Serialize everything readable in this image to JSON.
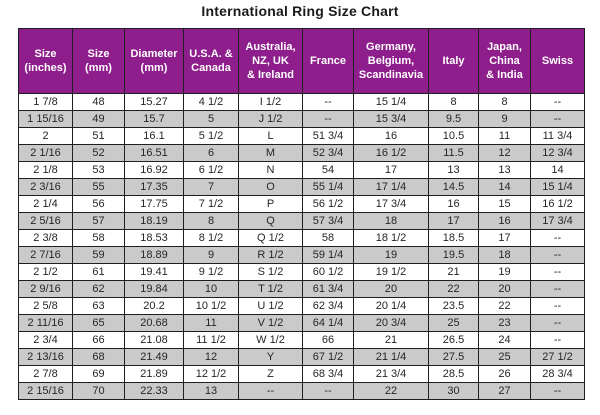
{
  "page": {
    "title": "International Ring Size Chart"
  },
  "colors": {
    "header_bg": "#8e1e8c",
    "row_bg": "#ffffff",
    "row_alt_bg": "#cacaca",
    "border": "#1f1f1f",
    "header_text": "#ffffff",
    "cell_text": "#262626",
    "title_text": "#1a1a1a"
  },
  "chart_data": {
    "type": "table",
    "title": "International Ring Size Chart",
    "columns": [
      "Size\n(inches)",
      "Size\n(mm)",
      "Diameter\n(mm)",
      "U.S.A. &\nCanada",
      "Australia,\nNZ, UK\n& Ireland",
      "France",
      "Germany,\nBelgium,\nScandinavia",
      "Italy",
      "Japan,\nChina\n& India",
      "Swiss"
    ],
    "rows": [
      [
        "1 7/8",
        "48",
        "15.27",
        "4 1/2",
        "I 1/2",
        "--",
        "15 1/4",
        "8",
        "8",
        "--"
      ],
      [
        "1 15/16",
        "49",
        "15.7",
        "5",
        "J 1/2",
        "--",
        "15 3/4",
        "9.5",
        "9",
        "--"
      ],
      [
        "2",
        "51",
        "16.1",
        "5 1/2",
        "L",
        "51 3/4",
        "16",
        "10.5",
        "11",
        "11 3/4"
      ],
      [
        "2 1/16",
        "52",
        "16.51",
        "6",
        "M",
        "52 3/4",
        "16 1/2",
        "11.5",
        "12",
        "12 3/4"
      ],
      [
        "2 1/8",
        "53",
        "16.92",
        "6 1/2",
        "N",
        "54",
        "17",
        "13",
        "13",
        "14"
      ],
      [
        "2 3/16",
        "55",
        "17.35",
        "7",
        "O",
        "55 1/4",
        "17 1/4",
        "14.5",
        "14",
        "15 1/4"
      ],
      [
        "2 1/4",
        "56",
        "17.75",
        "7 1/2",
        "P",
        "56 1/2",
        "17 3/4",
        "16",
        "15",
        "16 1/2"
      ],
      [
        "2 5/16",
        "57",
        "18.19",
        "8",
        "Q",
        "57 3/4",
        "18",
        "17",
        "16",
        "17 3/4"
      ],
      [
        "2 3/8",
        "58",
        "18.53",
        "8 1/2",
        "Q 1/2",
        "58",
        "18 1/2",
        "18.5",
        "17",
        "--"
      ],
      [
        "2 7/16",
        "59",
        "18.89",
        "9",
        "R 1/2",
        "59 1/4",
        "19",
        "19.5",
        "18",
        "--"
      ],
      [
        "2 1/2",
        "61",
        "19.41",
        "9 1/2",
        "S 1/2",
        "60 1/2",
        "19 1/2",
        "21",
        "19",
        "--"
      ],
      [
        "2 9/16",
        "62",
        "19.84",
        "10",
        "T 1/2",
        "61 3/4",
        "20",
        "22",
        "20",
        "--"
      ],
      [
        "2 5/8",
        "63",
        "20.2",
        "10 1/2",
        "U 1/2",
        "62 3/4",
        "20 1/4",
        "23.5",
        "22",
        "--"
      ],
      [
        "2 11/16",
        "65",
        "20.68",
        "11",
        "V 1/2",
        "64 1/4",
        "20 3/4",
        "25",
        "23",
        "--"
      ],
      [
        "2 3/4",
        "66",
        "21.08",
        "11 1/2",
        "W 1/2",
        "66",
        "21",
        "26.5",
        "24",
        "--"
      ],
      [
        "2 13/16",
        "68",
        "21.49",
        "12",
        "Y",
        "67 1/2",
        "21 1/4",
        "27.5",
        "25",
        "27 1/2"
      ],
      [
        "2 7/8",
        "69",
        "21.89",
        "12 1/2",
        "Z",
        "68 3/4",
        "21 3/4",
        "28.5",
        "26",
        "28 3/4"
      ],
      [
        "2 15/16",
        "70",
        "22.33",
        "13",
        "--",
        "--",
        "22",
        "30",
        "27",
        "--"
      ]
    ]
  }
}
